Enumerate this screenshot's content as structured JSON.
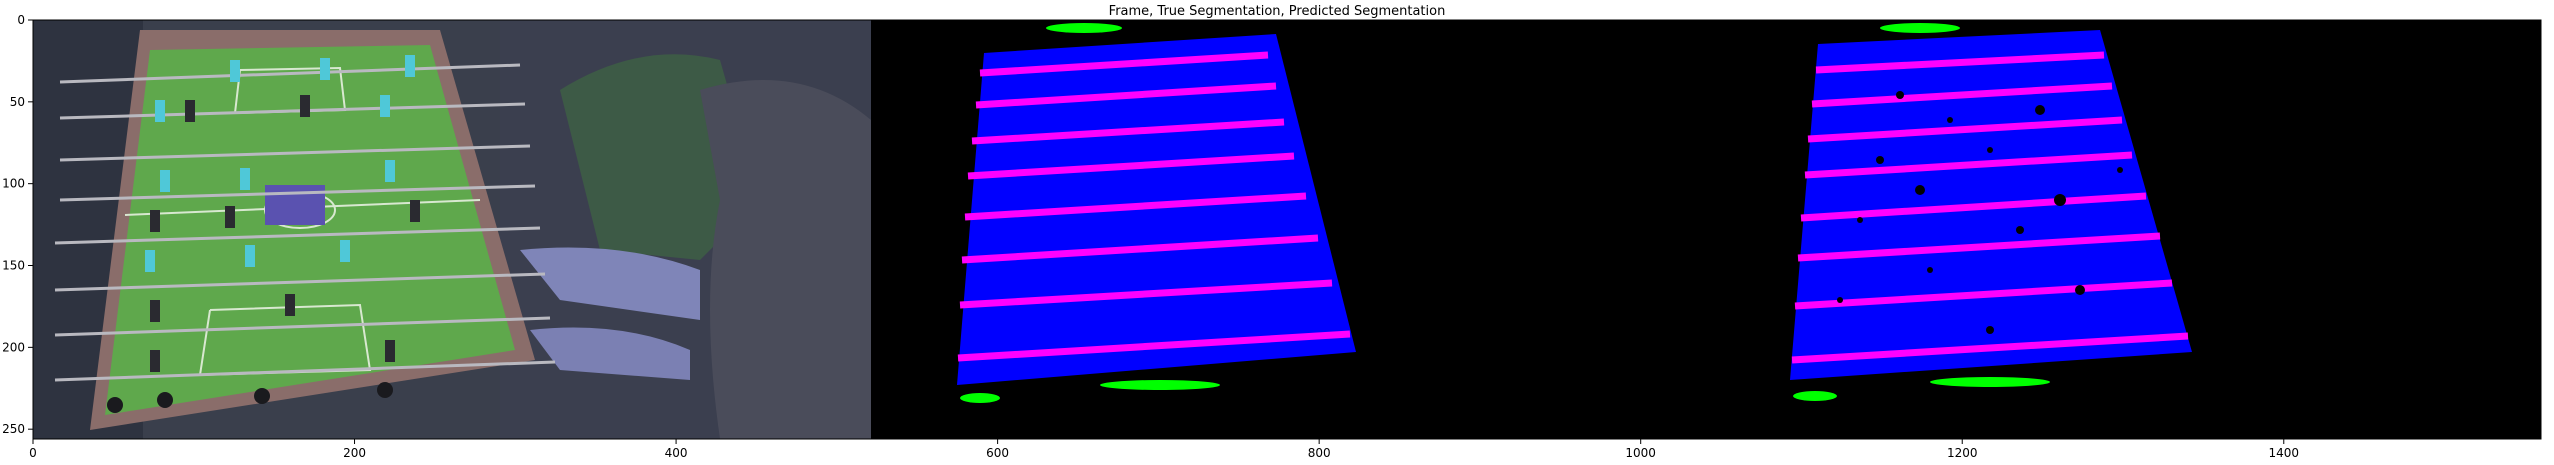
{
  "figure": {
    "title": "Frame, True Segmentation, Predicted Segmentation",
    "xticks": [
      "0",
      "200",
      "400",
      "600",
      "800",
      "1000",
      "1200",
      "1400"
    ],
    "yticks": [
      "0",
      "50",
      "100",
      "150",
      "200",
      "250"
    ],
    "xlim": [
      0,
      1560
    ],
    "ylim": [
      256,
      0
    ]
  },
  "panels": {
    "frame": {
      "caption": "Frame"
    },
    "true_seg": {
      "caption": "True Segmentation"
    },
    "pred_seg": {
      "caption": "Predicted Segmentation"
    }
  },
  "colors": {
    "table": "#0000ff",
    "rods": "#ff00ff",
    "players": "#00ff00",
    "background": "#000000",
    "frame_bg": "#343a48",
    "frame_field": "#5fa84c"
  }
}
